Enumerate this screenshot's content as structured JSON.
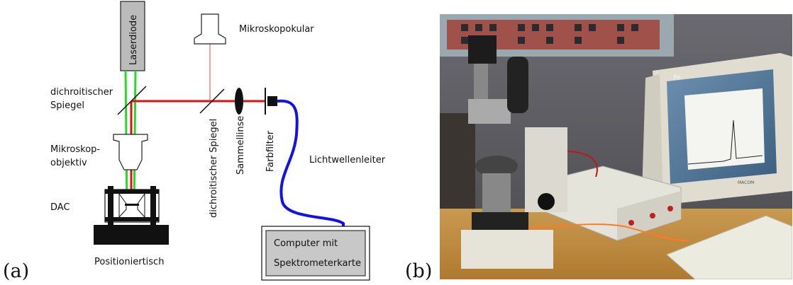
{
  "panel_a": {
    "letter": "(a)",
    "labels": {
      "laserdiode": "Laserdiode",
      "mikroskopokular": "Mikroskopokular",
      "dichroitischer_spiegel_1": [
        "dichroitischer",
        "Spiegel"
      ],
      "mikroskopobjektiv": [
        "Mikroskop-",
        "objektiv"
      ],
      "dac": "DAC",
      "positioniertisch": "Positioniertisch",
      "dichroitischer_spiegel_2": "dichroitischer Spiegel",
      "sammellinse": "Sammellinse",
      "farbfilter": "Farbfilter",
      "lichtwellenleiter": "Lichtwellenleiter",
      "computer": [
        "Computer mit",
        "Spektrometerkarte"
      ]
    },
    "colors": {
      "laser_green": "#22dd22",
      "laser_red": "#dd1111",
      "fiber_blue": "#1111ee",
      "component_gray": "#bbbbbb"
    }
  },
  "panel_b": {
    "letter": "(b)",
    "screen_brand": "Fn",
    "monitor_brand": "MACOM"
  }
}
